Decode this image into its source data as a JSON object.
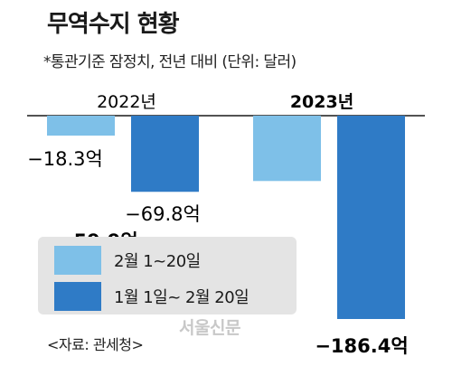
{
  "title": "무역수지 현황",
  "subtitle": "*통관기준 잠정치, 전년 대비 (단위: 달러)",
  "source": "<자료: 관세청>",
  "watermark": "서울신문",
  "colors": {
    "light": "#7ec0e8",
    "dark": "#2f7bc6",
    "axis": "#1a1a1a"
  },
  "chart_data": {
    "type": "bar",
    "categories": [
      "2022년",
      "2023년"
    ],
    "series": [
      {
        "name": "2월 1~20일",
        "values": [
          -18.3,
          -59.9
        ],
        "labels": [
          "−18.3억",
          "−59.9억"
        ]
      },
      {
        "name": "1월 1일~ 2월 20일",
        "values": [
          -69.8,
          -186.4
        ],
        "labels": [
          "−69.8억",
          "−186.4억"
        ]
      }
    ],
    "unit": "억 달러"
  }
}
